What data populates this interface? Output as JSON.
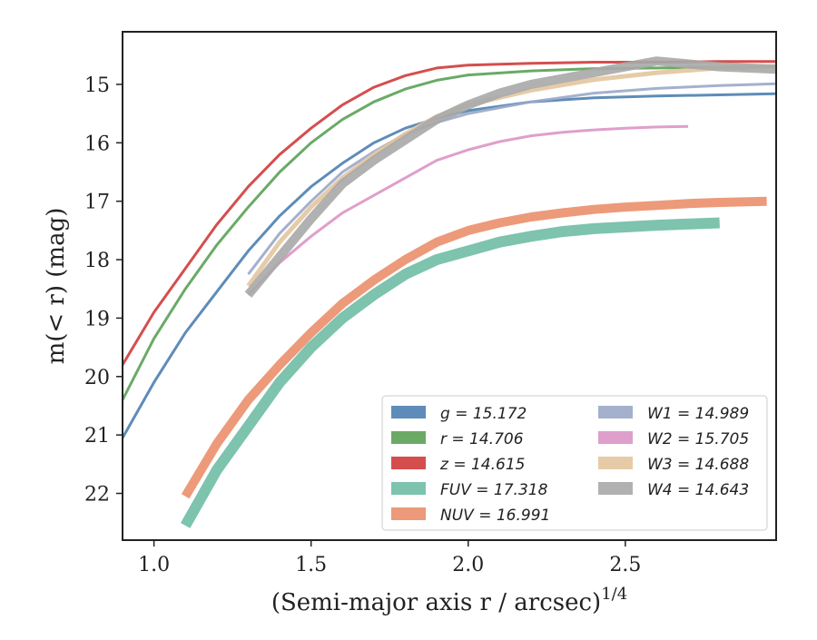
{
  "chart_data": {
    "type": "line",
    "xlabel": "(Semi-major axis r / arcsec)",
    "xlabel_sup": "1/4",
    "ylabel": "m(< r) (mag)",
    "xlim": [
      0.9,
      2.98
    ],
    "ylim": [
      22.8,
      14.1
    ],
    "y_inverted": true,
    "grid": false,
    "legend_placement": "lower-right",
    "x_ticks": [
      1.0,
      1.5,
      2.0,
      2.5
    ],
    "x_tick_labels": [
      "1.0",
      "1.5",
      "2.0",
      "2.5"
    ],
    "y_ticks": [
      15,
      16,
      17,
      18,
      19,
      20,
      21,
      22
    ],
    "y_tick_labels": [
      "15",
      "16",
      "17",
      "18",
      "19",
      "20",
      "21",
      "22"
    ],
    "series": [
      {
        "name": "g = 15.172",
        "legend_label": "g = 15.172",
        "color": "#4c7fb0",
        "width": 3,
        "points": [
          [
            0.9,
            21.05
          ],
          [
            1.0,
            20.1
          ],
          [
            1.1,
            19.25
          ],
          [
            1.2,
            18.55
          ],
          [
            1.3,
            17.85
          ],
          [
            1.4,
            17.25
          ],
          [
            1.5,
            16.75
          ],
          [
            1.6,
            16.35
          ],
          [
            1.7,
            16.0
          ],
          [
            1.8,
            15.75
          ],
          [
            1.9,
            15.58
          ],
          [
            2.0,
            15.45
          ],
          [
            2.2,
            15.3
          ],
          [
            2.4,
            15.23
          ],
          [
            2.6,
            15.2
          ],
          [
            2.8,
            15.18
          ],
          [
            2.98,
            15.16
          ]
        ]
      },
      {
        "name": "r = 14.706",
        "legend_label": "r = 14.706",
        "color": "#5aa155",
        "width": 3,
        "points": [
          [
            0.9,
            20.4
          ],
          [
            1.0,
            19.35
          ],
          [
            1.1,
            18.5
          ],
          [
            1.2,
            17.75
          ],
          [
            1.3,
            17.1
          ],
          [
            1.4,
            16.5
          ],
          [
            1.5,
            16.0
          ],
          [
            1.6,
            15.6
          ],
          [
            1.7,
            15.3
          ],
          [
            1.8,
            15.08
          ],
          [
            1.9,
            14.93
          ],
          [
            2.0,
            14.84
          ],
          [
            2.2,
            14.77
          ],
          [
            2.4,
            14.73
          ],
          [
            2.6,
            14.72
          ],
          [
            2.8,
            14.71
          ],
          [
            2.98,
            14.7
          ]
        ]
      },
      {
        "name": "z = 14.615",
        "legend_label": "z = 14.615",
        "color": "#d03b3b",
        "width": 3,
        "points": [
          [
            0.9,
            19.8
          ],
          [
            1.0,
            18.9
          ],
          [
            1.1,
            18.15
          ],
          [
            1.2,
            17.4
          ],
          [
            1.3,
            16.75
          ],
          [
            1.4,
            16.2
          ],
          [
            1.5,
            15.75
          ],
          [
            1.6,
            15.35
          ],
          [
            1.7,
            15.05
          ],
          [
            1.8,
            14.85
          ],
          [
            1.9,
            14.72
          ],
          [
            2.0,
            14.67
          ],
          [
            2.2,
            14.64
          ],
          [
            2.4,
            14.62
          ],
          [
            2.6,
            14.62
          ],
          [
            2.8,
            14.61
          ],
          [
            2.98,
            14.61
          ]
        ]
      },
      {
        "name": "FUV = 17.318",
        "legend_label": "FUV = 17.318",
        "color": "#6fbca5",
        "width": 12,
        "points": [
          [
            1.1,
            22.55
          ],
          [
            1.2,
            21.6
          ],
          [
            1.3,
            20.85
          ],
          [
            1.4,
            20.1
          ],
          [
            1.5,
            19.5
          ],
          [
            1.6,
            19.0
          ],
          [
            1.7,
            18.6
          ],
          [
            1.8,
            18.25
          ],
          [
            1.9,
            18.0
          ],
          [
            2.0,
            17.85
          ],
          [
            2.1,
            17.7
          ],
          [
            2.2,
            17.6
          ],
          [
            2.3,
            17.52
          ],
          [
            2.4,
            17.47
          ],
          [
            2.5,
            17.44
          ],
          [
            2.6,
            17.41
          ],
          [
            2.7,
            17.39
          ],
          [
            2.8,
            17.37
          ]
        ]
      },
      {
        "name": "NUV = 16.991",
        "legend_label": "NUV = 16.991",
        "color": "#ea8f6a",
        "width": 10,
        "points": [
          [
            1.1,
            22.05
          ],
          [
            1.2,
            21.15
          ],
          [
            1.3,
            20.4
          ],
          [
            1.4,
            19.8
          ],
          [
            1.5,
            19.25
          ],
          [
            1.6,
            18.75
          ],
          [
            1.7,
            18.35
          ],
          [
            1.8,
            18.0
          ],
          [
            1.9,
            17.7
          ],
          [
            2.0,
            17.5
          ],
          [
            2.1,
            17.37
          ],
          [
            2.2,
            17.27
          ],
          [
            2.3,
            17.2
          ],
          [
            2.4,
            17.14
          ],
          [
            2.5,
            17.1
          ],
          [
            2.6,
            17.07
          ],
          [
            2.7,
            17.04
          ],
          [
            2.8,
            17.02
          ],
          [
            2.95,
            17.0
          ]
        ]
      },
      {
        "name": "W1 = 14.989",
        "legend_label": "W1 = 14.989",
        "color": "#9aa8c8",
        "width": 3,
        "points": [
          [
            1.3,
            18.25
          ],
          [
            1.4,
            17.55
          ],
          [
            1.5,
            17.0
          ],
          [
            1.6,
            16.5
          ],
          [
            1.7,
            16.15
          ],
          [
            1.8,
            15.85
          ],
          [
            1.9,
            15.65
          ],
          [
            2.0,
            15.5
          ],
          [
            2.2,
            15.3
          ],
          [
            2.4,
            15.15
          ],
          [
            2.6,
            15.07
          ],
          [
            2.8,
            15.02
          ],
          [
            2.98,
            14.99
          ]
        ]
      },
      {
        "name": "W2 = 15.705",
        "legend_label": "W2 = 15.705",
        "color": "#dc95c5",
        "width": 3,
        "points": [
          [
            1.3,
            18.6
          ],
          [
            1.4,
            18.05
          ],
          [
            1.5,
            17.6
          ],
          [
            1.6,
            17.2
          ],
          [
            1.7,
            16.9
          ],
          [
            1.8,
            16.6
          ],
          [
            1.9,
            16.3
          ],
          [
            2.0,
            16.12
          ],
          [
            2.1,
            15.98
          ],
          [
            2.2,
            15.88
          ],
          [
            2.3,
            15.82
          ],
          [
            2.4,
            15.78
          ],
          [
            2.5,
            15.75
          ],
          [
            2.6,
            15.73
          ],
          [
            2.7,
            15.72
          ]
        ]
      },
      {
        "name": "W3 = 14.688",
        "legend_label": "W3 = 14.688",
        "color": "#e3c59e",
        "width": 5,
        "points": [
          [
            1.3,
            18.45
          ],
          [
            1.4,
            17.7
          ],
          [
            1.5,
            17.1
          ],
          [
            1.6,
            16.6
          ],
          [
            1.7,
            16.2
          ],
          [
            1.8,
            15.85
          ],
          [
            1.9,
            15.55
          ],
          [
            2.0,
            15.35
          ],
          [
            2.2,
            15.1
          ],
          [
            2.4,
            14.92
          ],
          [
            2.6,
            14.8
          ],
          [
            2.8,
            14.72
          ],
          [
            2.98,
            14.69
          ]
        ]
      },
      {
        "name": "W4 = 14.643",
        "legend_label": "W4 = 14.643",
        "color": "#a8a8a8",
        "width": 10,
        "points": [
          [
            1.3,
            18.6
          ],
          [
            1.4,
            17.95
          ],
          [
            1.5,
            17.3
          ],
          [
            1.6,
            16.7
          ],
          [
            1.7,
            16.3
          ],
          [
            1.8,
            15.95
          ],
          [
            1.9,
            15.6
          ],
          [
            2.0,
            15.35
          ],
          [
            2.1,
            15.15
          ],
          [
            2.2,
            15.0
          ],
          [
            2.3,
            14.9
          ],
          [
            2.4,
            14.8
          ],
          [
            2.5,
            14.7
          ],
          [
            2.6,
            14.6
          ],
          [
            2.7,
            14.65
          ],
          [
            2.8,
            14.7
          ],
          [
            2.98,
            14.74
          ]
        ]
      }
    ]
  }
}
